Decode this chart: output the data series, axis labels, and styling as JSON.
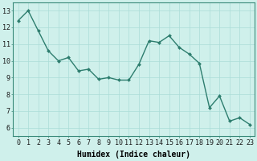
{
  "x": [
    0,
    1,
    2,
    3,
    4,
    5,
    6,
    7,
    8,
    9,
    10,
    11,
    12,
    13,
    14,
    15,
    16,
    17,
    18,
    19,
    20,
    21,
    22,
    23
  ],
  "y": [
    12.4,
    13.0,
    11.8,
    10.6,
    10.0,
    10.2,
    9.4,
    9.5,
    8.9,
    9.0,
    8.85,
    8.85,
    9.8,
    11.2,
    11.1,
    11.5,
    10.8,
    10.4,
    9.85,
    7.2,
    7.9,
    6.4,
    6.6,
    6.2
  ],
  "line_color": "#2d7d6e",
  "marker": "D",
  "marker_size": 2,
  "bg_color": "#cff0eb",
  "grid_color": "#aaddd7",
  "xlabel": "Humidex (Indice chaleur)",
  "xlim": [
    -0.5,
    23.5
  ],
  "ylim": [
    5.5,
    13.5
  ],
  "yticks": [
    6,
    7,
    8,
    9,
    10,
    11,
    12,
    13
  ],
  "xticks": [
    0,
    1,
    2,
    3,
    4,
    5,
    6,
    7,
    8,
    9,
    10,
    11,
    12,
    13,
    14,
    15,
    16,
    17,
    18,
    19,
    20,
    21,
    22,
    23
  ],
  "xlabel_fontsize": 7,
  "tick_fontsize": 6,
  "line_width": 1.0
}
